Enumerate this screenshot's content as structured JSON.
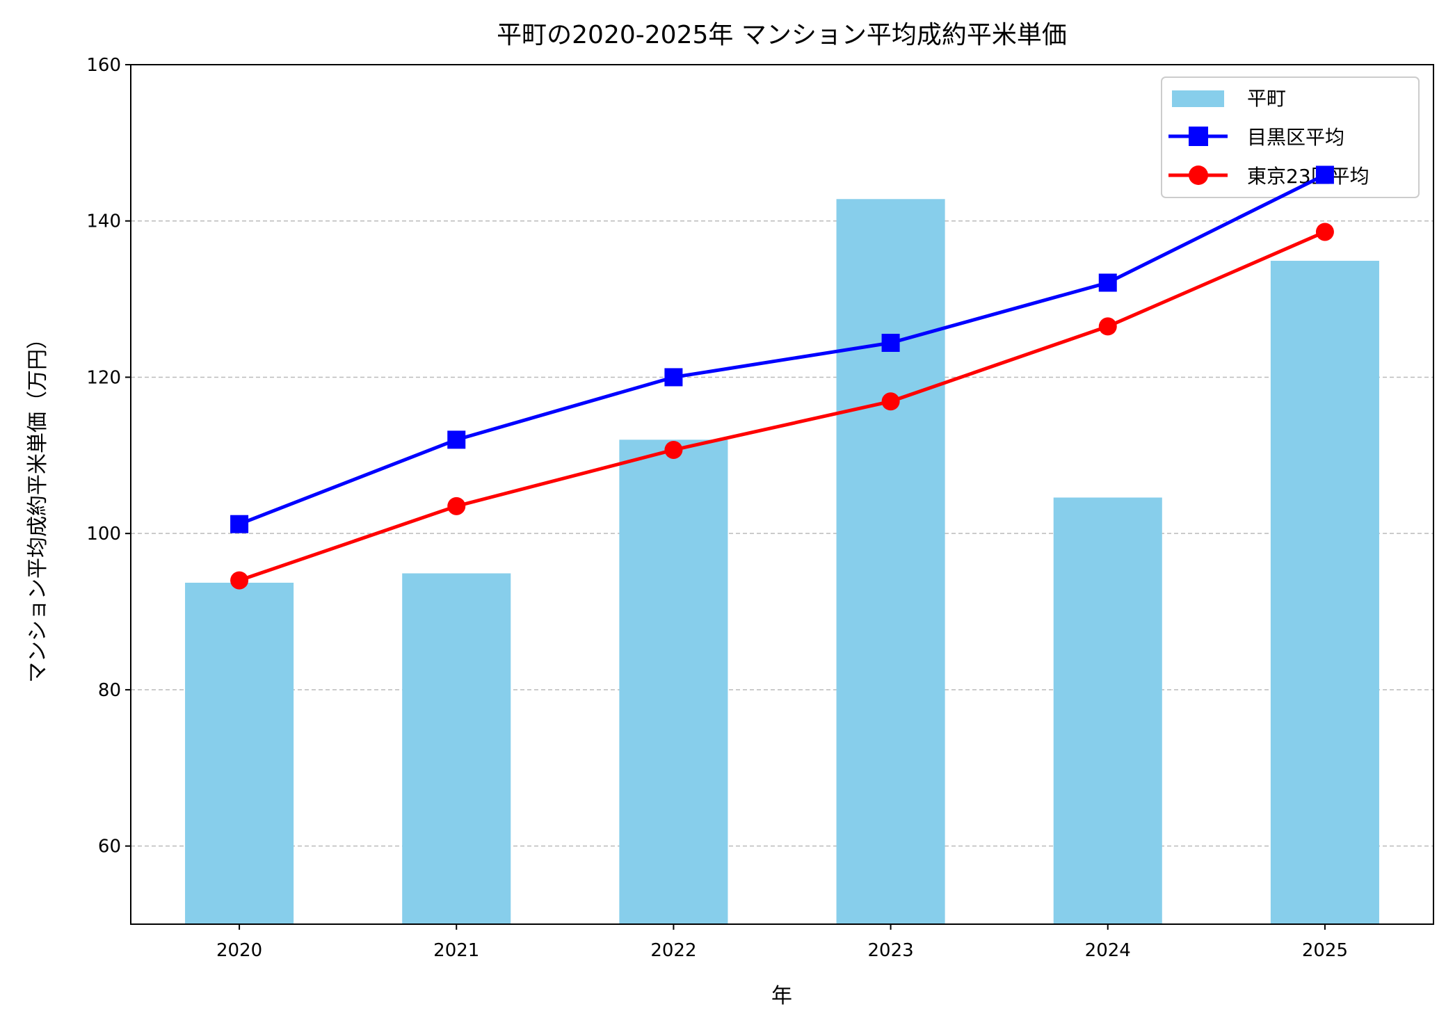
{
  "chart_data": {
    "type": "bar+line",
    "title": "平町の2020-2025年 マンション平均成約平米単価",
    "xlabel": "年",
    "ylabel": "マンション平均成約平米単価（万円）",
    "categories": [
      "2020",
      "2021",
      "2022",
      "2023",
      "2024",
      "2025"
    ],
    "ylim": [
      50,
      160
    ],
    "yticks": [
      60,
      80,
      100,
      120,
      140,
      160
    ],
    "grid": "y dashed",
    "legend_position": "top-right",
    "series": [
      {
        "name": "平町",
        "kind": "bar",
        "color": "#87CEEB",
        "values": [
          93.7,
          94.9,
          112.0,
          142.8,
          104.6,
          134.9
        ]
      },
      {
        "name": "目黒区平均",
        "kind": "line",
        "marker": "square",
        "color": "#0000FF",
        "values": [
          101.2,
          112.0,
          120.0,
          124.4,
          132.1,
          145.9
        ]
      },
      {
        "name": "東京23区平均",
        "kind": "line",
        "marker": "circle",
        "color": "#FF0000",
        "values": [
          94.0,
          103.5,
          110.7,
          116.9,
          126.5,
          138.6
        ]
      }
    ]
  }
}
